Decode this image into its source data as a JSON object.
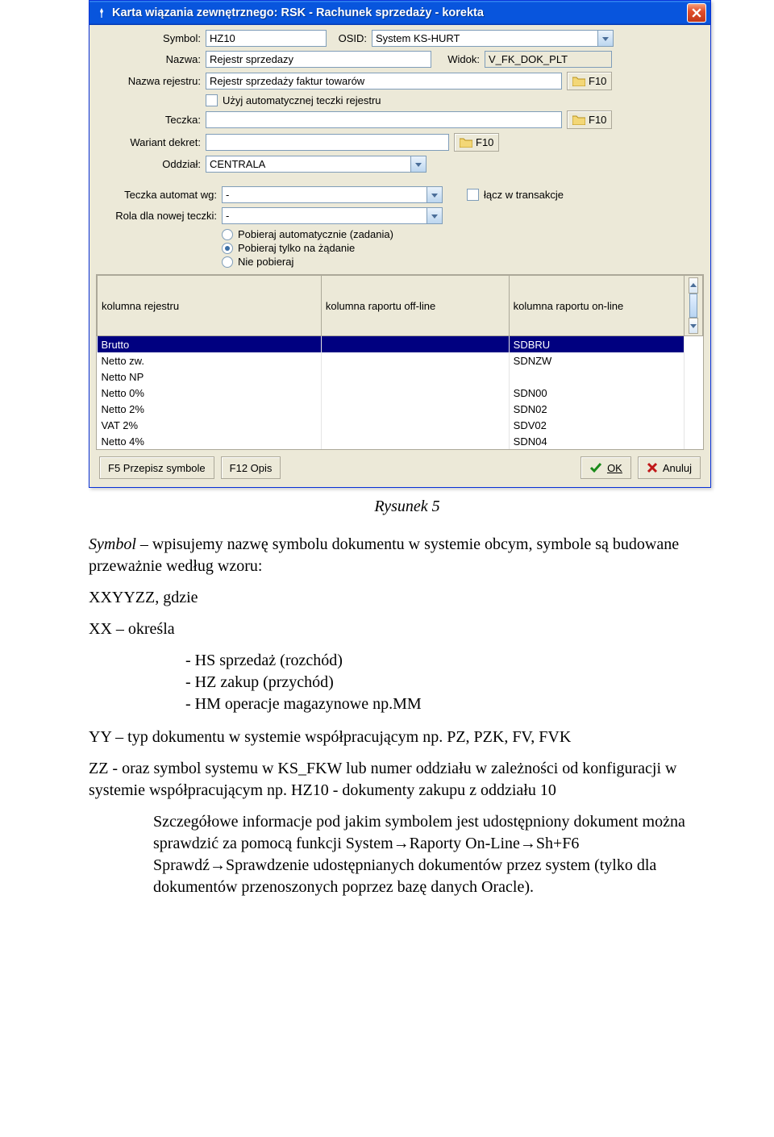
{
  "dialog": {
    "title": "Karta wiązania zewnętrznego: RSK - Rachunek sprzedaży - korekta",
    "labels": {
      "symbol": "Symbol:",
      "osid": "OSID:",
      "nazwa": "Nazwa:",
      "widok": "Widok:",
      "nazwa_rejestru": "Nazwa rejestru:",
      "uzyj_auto": "Użyj automatycznej teczki rejestru",
      "teczka": "Teczka:",
      "wariant": "Wariant dekret:",
      "oddzial": "Oddział:",
      "teczka_auto": "Teczka automat wg:",
      "rola": "Rola dla nowej teczki:",
      "lacz": "łącz w transakcje"
    },
    "values": {
      "symbol": "HZ10",
      "osid": "System KS-HURT",
      "nazwa": "Rejestr sprzedazy",
      "widok": "V_FK_DOK_PLT",
      "nazwa_rejestru": "Rejestr sprzedaży faktur towarów",
      "teczka": "",
      "wariant": "",
      "oddzial": "CENTRALA",
      "teczka_auto": "-",
      "rola": "-"
    },
    "f10": "F10",
    "radios": {
      "r1": "Pobieraj automatycznie (zadania)",
      "r2": "Pobieraj tylko na żądanie",
      "r3": "Nie pobieraj"
    },
    "grid": {
      "h1": "kolumna rejestru",
      "h2": "kolumna raportu off-line",
      "h3": "kolumna raportu on-line",
      "rows": [
        {
          "c1": "Brutto",
          "c2": "",
          "c3": "SDBRU",
          "hl": true
        },
        {
          "c1": "Netto zw.",
          "c2": "",
          "c3": "SDNZW"
        },
        {
          "c1": "Netto NP",
          "c2": "",
          "c3": ""
        },
        {
          "c1": "Netto 0%",
          "c2": "",
          "c3": "SDN00"
        },
        {
          "c1": "Netto 2%",
          "c2": "",
          "c3": "SDN02"
        },
        {
          "c1": "VAT  2%",
          "c2": "",
          "c3": "SDV02"
        },
        {
          "c1": "Netto 4%",
          "c2": "",
          "c3": "SDN04"
        }
      ]
    },
    "buttons": {
      "f5": "F5 Przepisz symbole",
      "f12": "F12 Opis",
      "ok": "OK",
      "anuluj": "Anuluj"
    }
  },
  "doc": {
    "caption": "Rysunek 5",
    "p1a": "Symbol",
    "p1b": " – wpisujemy nazwę symbolu dokumentu w systemie obcym, symbole są budowane przeważnie według wzoru:",
    "p2": "XXYYZZ, gdzie",
    "p3": "XX – określa",
    "li1": "- HS sprzedaż (rozchód)",
    "li2": "- HZ zakup (przychód)",
    "li3": "- HM operacje magazynowe np.MM",
    "p4": "YY – typ dokumentu w systemie współpracującym np. PZ, PZK, FV, FVK",
    "p5": "ZZ - oraz symbol systemu w KS_FKW lub numer oddziału w zależności od konfiguracji w systemie współpracującym np. HZ10 - dokumenty zakupu z oddziału 10",
    "p6": "Szczegółowe informacje pod jakim symbolem jest udostępniony dokument można sprawdzić za pomocą funkcji System→Raporty On-Line→Sh+F6 Sprawdź→Sprawdzenie udostępnianych dokumentów przez system (tylko dla dokumentów przenoszonych poprzez bazę danych Oracle)."
  }
}
